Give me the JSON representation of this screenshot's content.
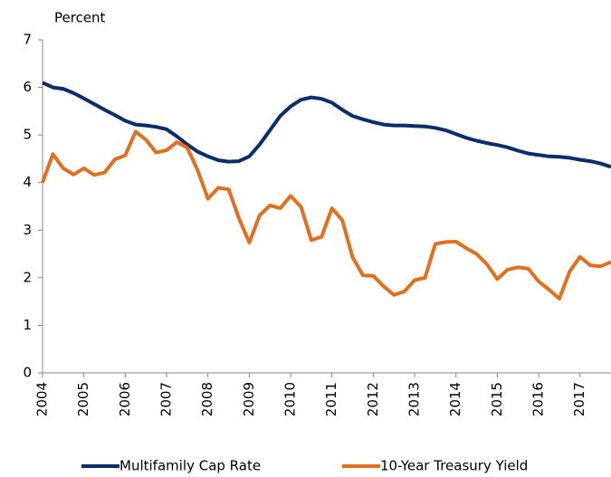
{
  "chart_data": {
    "type": "line",
    "y_label": "Percent",
    "x": [
      2004,
      2004.25,
      2004.5,
      2004.75,
      2005,
      2005.25,
      2005.5,
      2005.75,
      2006,
      2006.25,
      2006.5,
      2006.75,
      2007,
      2007.25,
      2007.5,
      2007.75,
      2008,
      2008.25,
      2008.5,
      2008.75,
      2009,
      2009.25,
      2009.5,
      2009.75,
      2010,
      2010.25,
      2010.5,
      2010.75,
      2011,
      2011.25,
      2011.5,
      2011.75,
      2012,
      2012.25,
      2012.5,
      2012.75,
      2013,
      2013.25,
      2013.5,
      2013.75,
      2014,
      2014.25,
      2014.5,
      2014.75,
      2015,
      2015.25,
      2015.5,
      2015.75,
      2016,
      2016.25,
      2016.5,
      2016.75,
      2017,
      2017.25,
      2017.5,
      2017.75
    ],
    "series": [
      {
        "name": "Multifamily Cap Rate",
        "color": "#0b2d6b",
        "values": [
          6.1,
          6.0,
          5.97,
          5.88,
          5.77,
          5.65,
          5.53,
          5.42,
          5.3,
          5.22,
          5.2,
          5.17,
          5.12,
          4.97,
          4.8,
          4.65,
          4.55,
          4.47,
          4.44,
          4.45,
          4.55,
          4.8,
          5.1,
          5.4,
          5.6,
          5.74,
          5.79,
          5.76,
          5.68,
          5.53,
          5.4,
          5.33,
          5.27,
          5.22,
          5.2,
          5.2,
          5.19,
          5.18,
          5.15,
          5.1,
          5.02,
          4.94,
          4.88,
          4.83,
          4.79,
          4.74,
          4.67,
          4.61,
          4.58,
          4.55,
          4.54,
          4.52,
          4.48,
          4.45,
          4.4,
          4.33
        ]
      },
      {
        "name": "10-Year Treasury Yield",
        "color": "#e07020",
        "values": [
          4.0,
          4.6,
          4.3,
          4.17,
          4.3,
          4.16,
          4.21,
          4.49,
          4.57,
          5.07,
          4.9,
          4.63,
          4.68,
          4.85,
          4.73,
          4.26,
          3.66,
          3.89,
          3.86,
          3.25,
          2.74,
          3.31,
          3.52,
          3.46,
          3.72,
          3.49,
          2.79,
          2.86,
          3.46,
          3.21,
          2.43,
          2.05,
          2.04,
          1.82,
          1.64,
          1.71,
          1.95,
          2.0,
          2.71,
          2.75,
          2.76,
          2.62,
          2.5,
          2.28,
          1.97,
          2.17,
          2.22,
          2.19,
          1.92,
          1.75,
          1.56,
          2.13,
          2.44,
          2.26,
          2.24,
          2.33
        ]
      }
    ],
    "xlim": [
      2004,
      2017.75
    ],
    "xticks": [
      2004,
      2005,
      2006,
      2007,
      2008,
      2009,
      2010,
      2011,
      2012,
      2013,
      2014,
      2015,
      2016,
      2017
    ],
    "ylim": [
      0,
      7
    ],
    "yticks": [
      0,
      1,
      2,
      3,
      4,
      5,
      6,
      7
    ],
    "grid": false,
    "legend": "bottom"
  }
}
